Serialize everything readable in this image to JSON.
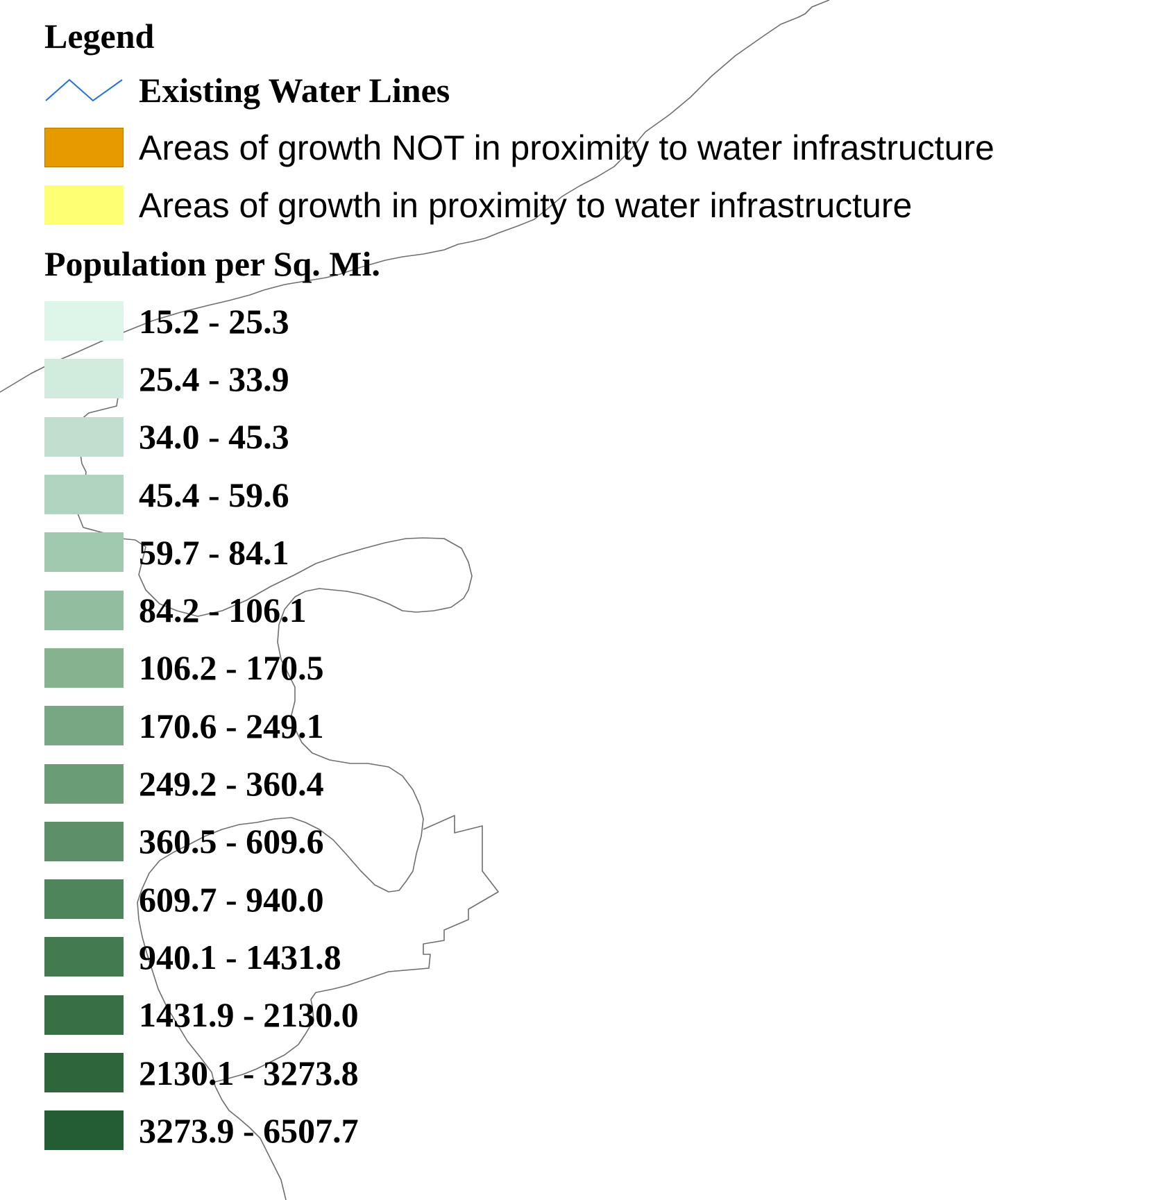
{
  "legend": {
    "title": "Legend",
    "water_lines": {
      "label": "Existing Water Lines",
      "color": "#1f6fe0",
      "icon": "zigzag-line-icon"
    },
    "growth_not_near_water": {
      "label": "Areas of growth NOT in proximity to water infrastructure",
      "color": "#e69a00"
    },
    "growth_near_water": {
      "label": "Areas of growth in proximity to water infrastructure",
      "color": "#ffff73"
    },
    "population_heading": "Population per Sq. Mi.",
    "population_classes": [
      {
        "label": "15.2 - 25.3",
        "color": "#def5e9"
      },
      {
        "label": "25.4 - 33.9",
        "color": "#d1ebdd"
      },
      {
        "label": "34.0 - 45.3",
        "color": "#c0dfce"
      },
      {
        "label": "45.4 - 59.6",
        "color": "#b0d4bf"
      },
      {
        "label": "59.7 - 84.1",
        "color": "#a0c9af"
      },
      {
        "label": "84.2 - 106.1",
        "color": "#93bd9f"
      },
      {
        "label": "106.2 - 170.5",
        "color": "#86b290"
      },
      {
        "label": "170.6 - 249.1",
        "color": "#78a784"
      },
      {
        "label": "249.2 - 360.4",
        "color": "#6a9c75"
      },
      {
        "label": "360.5 - 609.6",
        "color": "#5d9068"
      },
      {
        "label": "609.7 - 940.0",
        "color": "#4f855a"
      },
      {
        "label": "940.1 - 1431.8",
        "color": "#437a4f"
      },
      {
        "label": "1431.9 - 2130.0",
        "color": "#386f45"
      },
      {
        "label": "2130.1 - 3273.8",
        "color": "#2e653b"
      },
      {
        "label": "3273.9 - 6507.7",
        "color": "#245c33"
      }
    ]
  }
}
